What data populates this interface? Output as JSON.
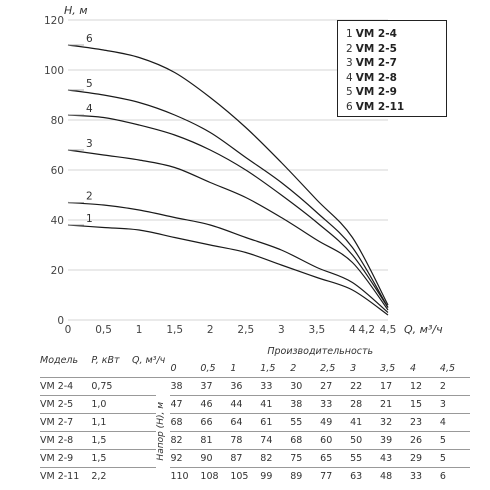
{
  "chart_data": {
    "type": "line",
    "ylabel": "H, м",
    "xlabel": "Q, м³/ч",
    "ylim": [
      0,
      120
    ],
    "xlim": [
      0,
      4.5
    ],
    "y_ticks": [
      "0",
      "20",
      "40",
      "60",
      "80",
      "100",
      "120"
    ],
    "x_ticks": [
      "0",
      "0,5",
      "1",
      "1,5",
      "2",
      "2,5",
      "3",
      "3,5",
      "4",
      "4,2",
      "4,5"
    ],
    "x_tick_values": [
      0,
      0.5,
      1,
      1.5,
      2,
      2.5,
      3,
      3.5,
      4,
      4.2,
      4.5
    ],
    "grid": "horizontal",
    "legend_placement": "top-right",
    "x": [
      0,
      0.5,
      1,
      1.5,
      2,
      2.5,
      3,
      3.5,
      4,
      4.5
    ],
    "series": [
      {
        "name": "VM 2-4",
        "label": "1",
        "values": [
          38,
          37,
          36,
          33,
          30,
          27,
          22,
          17,
          12,
          2
        ]
      },
      {
        "name": "VM 2-5",
        "label": "2",
        "values": [
          47,
          46,
          44,
          41,
          38,
          33,
          28,
          21,
          15,
          3
        ]
      },
      {
        "name": "VM 2-7",
        "label": "3",
        "values": [
          68,
          66,
          64,
          61,
          55,
          49,
          41,
          32,
          23,
          4
        ]
      },
      {
        "name": "VM 2-8",
        "label": "4",
        "values": [
          82,
          81,
          78,
          74,
          68,
          60,
          50,
          39,
          26,
          5
        ]
      },
      {
        "name": "VM 2-9",
        "label": "5",
        "values": [
          92,
          90,
          87,
          82,
          75,
          65,
          55,
          43,
          29,
          5
        ]
      },
      {
        "name": "VM 2-11",
        "label": "6",
        "values": [
          110,
          108,
          105,
          99,
          89,
          77,
          63,
          48,
          33,
          6
        ]
      }
    ]
  },
  "legend": [
    {
      "num": "1",
      "model": "VM 2-4"
    },
    {
      "num": "2",
      "model": "VM 2-5"
    },
    {
      "num": "3",
      "model": "VM 2-7"
    },
    {
      "num": "4",
      "model": "VM 2-8"
    },
    {
      "num": "5",
      "model": "VM 2-9"
    },
    {
      "num": "6",
      "model": "VM 2-11"
    }
  ],
  "table": {
    "col_model": "Модель",
    "col_power": "P, кВт",
    "col_q": "Q, м³/ч",
    "col_perf": "Производительность",
    "col_head": "Напор (H), м",
    "q_values": [
      "0",
      "0,5",
      "1",
      "1,5",
      "2",
      "2,5",
      "3",
      "3,5",
      "4",
      "4,5"
    ],
    "rows": [
      {
        "model": "VM 2-4",
        "power": "0,75",
        "values": [
          "38",
          "37",
          "36",
          "33",
          "30",
          "27",
          "22",
          "17",
          "12",
          "2"
        ]
      },
      {
        "model": "VM 2-5",
        "power": "1,0",
        "values": [
          "47",
          "46",
          "44",
          "41",
          "38",
          "33",
          "28",
          "21",
          "15",
          "3"
        ]
      },
      {
        "model": "VM 2-7",
        "power": "1,1",
        "values": [
          "68",
          "66",
          "64",
          "61",
          "55",
          "49",
          "41",
          "32",
          "23",
          "4"
        ]
      },
      {
        "model": "VM 2-8",
        "power": "1,5",
        "values": [
          "82",
          "81",
          "78",
          "74",
          "68",
          "60",
          "50",
          "39",
          "26",
          "5"
        ]
      },
      {
        "model": "VM 2-9",
        "power": "1,5",
        "values": [
          "92",
          "90",
          "87",
          "82",
          "75",
          "65",
          "55",
          "43",
          "29",
          "5"
        ]
      },
      {
        "model": "VM 2-11",
        "power": "2,2",
        "values": [
          "110",
          "108",
          "105",
          "99",
          "89",
          "77",
          "63",
          "48",
          "33",
          "6"
        ]
      }
    ]
  }
}
